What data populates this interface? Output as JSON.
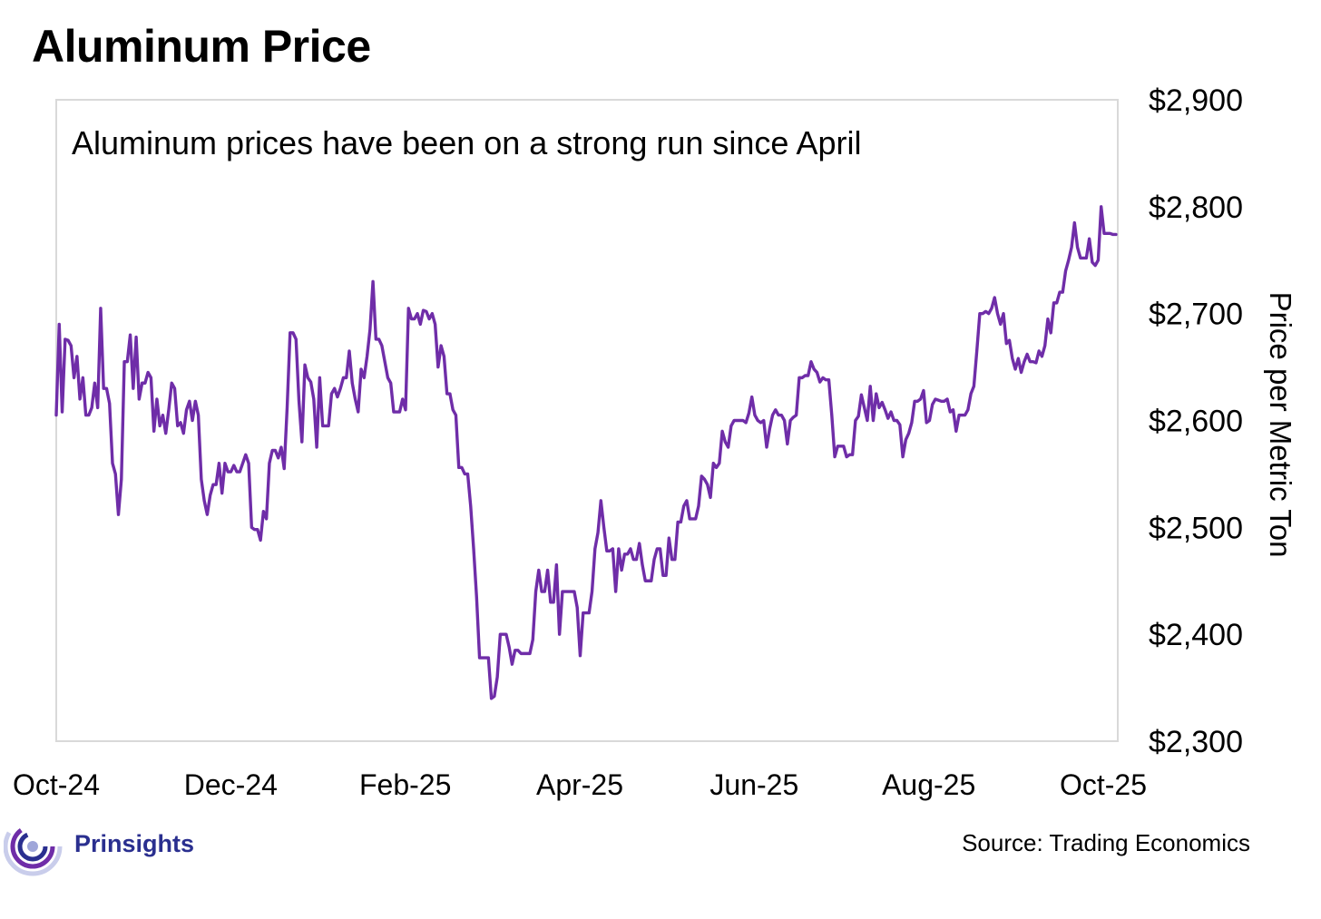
{
  "chart_data": {
    "type": "line",
    "title": "Aluminum Price",
    "annotation": "Aluminum prices have been on a strong run since April",
    "xlabel": "",
    "ylabel": "Price per Metric Ton",
    "ylim": [
      2300,
      2900
    ],
    "yticks": [
      "$2,300",
      "$2,400",
      "$2,500",
      "$2,600",
      "$2,700",
      "$2,800",
      "$2,900"
    ],
    "ytick_values": [
      2300,
      2400,
      2500,
      2600,
      2700,
      2800,
      2900
    ],
    "xticks": [
      "Oct-24",
      "Dec-24",
      "Feb-25",
      "Apr-25",
      "Jun-25",
      "Aug-25",
      "Oct-25"
    ],
    "line_color": "#6f2da8",
    "series": [
      {
        "name": "Aluminum",
        "values": [
          2605,
          2690,
          2608,
          2676,
          2675,
          2670,
          2640,
          2660,
          2620,
          2640,
          2605,
          2605,
          2612,
          2635,
          2612,
          2705,
          2630,
          2630,
          2616,
          2560,
          2550,
          2512,
          2545,
          2655,
          2655,
          2680,
          2630,
          2678,
          2620,
          2635,
          2635,
          2645,
          2640,
          2590,
          2620,
          2595,
          2605,
          2588,
          2610,
          2635,
          2630,
          2595,
          2598,
          2588,
          2610,
          2618,
          2600,
          2618,
          2605,
          2545,
          2525,
          2512,
          2530,
          2540,
          2540,
          2560,
          2532,
          2560,
          2552,
          2552,
          2558,
          2552,
          2552,
          2560,
          2568,
          2560,
          2500,
          2498,
          2498,
          2488,
          2515,
          2508,
          2560,
          2572,
          2572,
          2565,
          2575,
          2555,
          2612,
          2682,
          2682,
          2676,
          2618,
          2580,
          2652,
          2640,
          2636,
          2620,
          2575,
          2640,
          2595,
          2595,
          2595,
          2625,
          2630,
          2622,
          2630,
          2640,
          2640,
          2665,
          2635,
          2620,
          2608,
          2648,
          2640,
          2660,
          2685,
          2730,
          2676,
          2676,
          2670,
          2655,
          2640,
          2635,
          2608,
          2608,
          2608,
          2620,
          2610,
          2705,
          2695,
          2695,
          2700,
          2690,
          2703,
          2702,
          2695,
          2700,
          2690,
          2650,
          2670,
          2660,
          2625,
          2625,
          2610,
          2605,
          2556,
          2556,
          2550,
          2550,
          2520,
          2480,
          2435,
          2378,
          2378,
          2378,
          2378,
          2340,
          2342,
          2360,
          2400,
          2400,
          2400,
          2388,
          2372,
          2385,
          2385,
          2382,
          2382,
          2382,
          2382,
          2395,
          2440,
          2460,
          2440,
          2440,
          2460,
          2430,
          2430,
          2465,
          2400,
          2440,
          2440,
          2440,
          2440,
          2440,
          2425,
          2380,
          2420,
          2420,
          2420,
          2440,
          2480,
          2495,
          2525,
          2500,
          2478,
          2478,
          2480,
          2440,
          2480,
          2460,
          2475,
          2475,
          2480,
          2470,
          2470,
          2485,
          2465,
          2450,
          2450,
          2450,
          2470,
          2480,
          2480,
          2455,
          2455,
          2490,
          2470,
          2470,
          2505,
          2505,
          2520,
          2525,
          2508,
          2508,
          2508,
          2520,
          2548,
          2545,
          2540,
          2528,
          2560,
          2556,
          2560,
          2590,
          2580,
          2575,
          2595,
          2600,
          2600,
          2600,
          2600,
          2598,
          2607,
          2622,
          2605,
          2600,
          2598,
          2600,
          2575,
          2592,
          2605,
          2610,
          2605,
          2605,
          2600,
          2578,
          2600,
          2603,
          2605,
          2640,
          2640,
          2642,
          2642,
          2655,
          2648,
          2645,
          2636,
          2640,
          2638,
          2638,
          2605,
          2566,
          2576,
          2576,
          2576,
          2566,
          2568,
          2568,
          2600,
          2604,
          2624,
          2612,
          2600,
          2632,
          2600,
          2625,
          2612,
          2617,
          2610,
          2602,
          2608,
          2600,
          2600,
          2596,
          2566,
          2582,
          2588,
          2598,
          2618,
          2618,
          2620,
          2628,
          2598,
          2600,
          2615,
          2620,
          2619,
          2618,
          2618,
          2620,
          2608,
          2610,
          2590,
          2605,
          2605,
          2605,
          2610,
          2625,
          2632,
          2665,
          2700,
          2700,
          2702,
          2700,
          2705,
          2715,
          2700,
          2690,
          2700,
          2672,
          2675,
          2658,
          2648,
          2658,
          2645,
          2655,
          2662,
          2655,
          2655,
          2654,
          2665,
          2660,
          2670,
          2695,
          2682,
          2710,
          2710,
          2720,
          2720,
          2740,
          2750,
          2762,
          2785,
          2762,
          2752,
          2752,
          2752,
          2770,
          2748,
          2745,
          2750,
          2800,
          2775,
          2775,
          2775,
          2774,
          2774
        ]
      }
    ]
  },
  "branding": {
    "logo_text": "Prinsights",
    "logo_icon": "prinsights-swirl-icon",
    "logo_colors": [
      "#2a2f8f",
      "#6f2da8",
      "#9fa6d9"
    ]
  },
  "source_text": "Source: Trading Economics"
}
